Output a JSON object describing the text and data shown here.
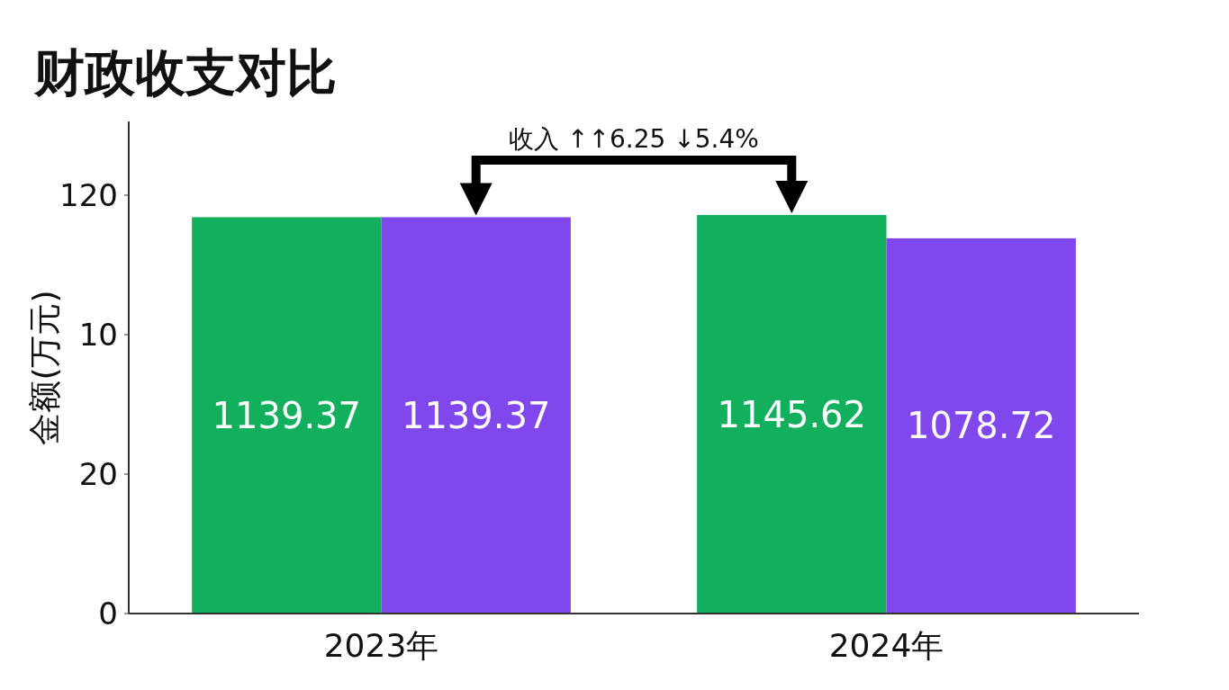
{
  "chart_data": {
    "type": "bar",
    "title": "财政收支对比",
    "ylabel": "金额(万元)",
    "categories": [
      "2023年",
      "2024年"
    ],
    "series": [
      {
        "color": "#12b05c",
        "values": [
          1139.37,
          1145.62
        ]
      },
      {
        "color": "#8047ec",
        "values": [
          1139.37,
          1078.72
        ]
      }
    ],
    "data_labels": true,
    "annotations": [
      "0",
      "20",
      "10",
      "120",
      "收入 ↑↑6.25   ↓5.4%"
    ]
  }
}
